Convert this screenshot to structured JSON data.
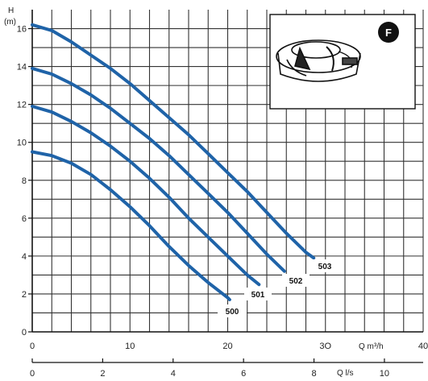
{
  "chart_data": {
    "type": "line",
    "y_axis": {
      "label": "H",
      "unit": "(m)",
      "range": [
        0,
        17
      ],
      "ticks": [
        0,
        2,
        4,
        6,
        8,
        10,
        12,
        14,
        16
      ]
    },
    "x_axis_top": {
      "label": "Q m³/h",
      "range": [
        0,
        40
      ],
      "ticks": [
        0,
        10,
        20,
        30,
        40
      ],
      "tick_labels": [
        "0",
        "10",
        "20",
        "3O",
        "40"
      ]
    },
    "x_axis_bottom": {
      "label": "Q l/s",
      "range": [
        0,
        11.1
      ],
      "ticks": [
        0,
        2,
        4,
        6,
        8,
        10
      ],
      "tick_labels": [
        "0",
        "2",
        "4",
        "6",
        "8",
        "10"
      ]
    },
    "grid": true,
    "series_color": "#1f63a8",
    "series": [
      {
        "name": "500",
        "x": [
          0,
          2,
          4,
          6,
          8,
          10,
          12,
          14,
          16,
          18,
          20,
          20.2
        ],
        "y": [
          9.5,
          9.3,
          8.9,
          8.3,
          7.5,
          6.6,
          5.6,
          4.5,
          3.5,
          2.6,
          1.8,
          1.7
        ]
      },
      {
        "name": "501",
        "x": [
          0,
          2,
          4,
          6,
          8,
          10,
          12,
          14,
          16,
          18,
          20,
          22,
          23.2
        ],
        "y": [
          11.9,
          11.6,
          11.1,
          10.5,
          9.8,
          9.0,
          8.1,
          7.1,
          6.0,
          5.0,
          4.0,
          3.0,
          2.5
        ]
      },
      {
        "name": "502",
        "x": [
          0,
          2,
          4,
          6,
          8,
          10,
          12,
          14,
          16,
          18,
          20,
          22,
          24,
          25.8
        ],
        "y": [
          13.9,
          13.6,
          13.1,
          12.5,
          11.8,
          11.0,
          10.2,
          9.3,
          8.3,
          7.3,
          6.3,
          5.2,
          4.1,
          3.2
        ]
      },
      {
        "name": "503",
        "x": [
          0,
          2,
          4,
          6,
          8,
          10,
          12,
          14,
          16,
          18,
          20,
          22,
          24,
          26,
          28,
          28.8
        ],
        "y": [
          16.2,
          15.9,
          15.3,
          14.6,
          13.9,
          13.1,
          12.2,
          11.3,
          10.4,
          9.4,
          8.4,
          7.4,
          6.3,
          5.2,
          4.2,
          3.9
        ]
      }
    ]
  },
  "badge": {
    "text": "F"
  },
  "inset": {
    "icon": "pump-impeller-icon"
  }
}
